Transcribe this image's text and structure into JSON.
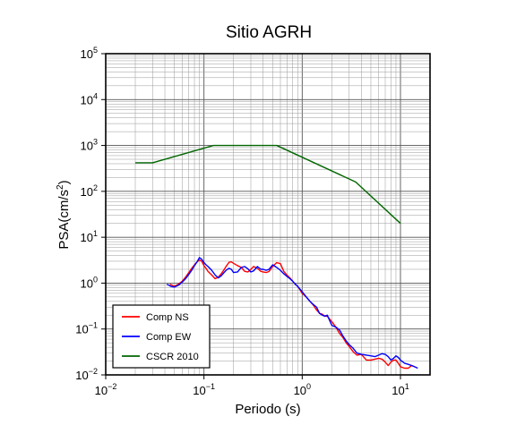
{
  "chart_data": {
    "type": "line",
    "title": "Sitio AGRH",
    "xlabel": "Periodo (s)",
    "ylabel": "PSA(cm/s2)",
    "x_scale": "log",
    "y_scale": "log",
    "xlim": [
      0.01,
      20
    ],
    "ylim": [
      0.01,
      100000
    ],
    "x_ticks": [
      {
        "base": "10",
        "exp": "−2",
        "value": 0.01
      },
      {
        "base": "10",
        "exp": "−1",
        "value": 0.1
      },
      {
        "base": "10",
        "exp": "0",
        "value": 1
      },
      {
        "base": "10",
        "exp": "1",
        "value": 10
      }
    ],
    "y_ticks": [
      {
        "base": "10",
        "exp": "−2",
        "value": 0.01
      },
      {
        "base": "10",
        "exp": "−1",
        "value": 0.1
      },
      {
        "base": "10",
        "exp": "0",
        "value": 1
      },
      {
        "base": "10",
        "exp": "1",
        "value": 10
      },
      {
        "base": "10",
        "exp": "2",
        "value": 100
      },
      {
        "base": "10",
        "exp": "3",
        "value": 1000
      },
      {
        "base": "10",
        "exp": "4",
        "value": 10000
      },
      {
        "base": "10",
        "exp": "5",
        "value": 100000
      }
    ],
    "grid": true,
    "legend_position": "bottom-left",
    "series": [
      {
        "name": "Comp NS",
        "color": "#ff0000",
        "x": [
          0.045,
          0.05,
          0.055,
          0.06,
          0.065,
          0.07,
          0.075,
          0.08,
          0.085,
          0.09,
          0.095,
          0.1,
          0.105,
          0.11,
          0.12,
          0.13,
          0.14,
          0.15,
          0.16,
          0.17,
          0.18,
          0.19,
          0.2,
          0.22,
          0.24,
          0.26,
          0.28,
          0.3,
          0.32,
          0.35,
          0.38,
          0.4,
          0.43,
          0.46,
          0.5,
          0.55,
          0.6,
          0.65,
          0.7,
          0.75,
          0.8,
          0.85,
          0.9,
          1.0,
          1.1,
          1.2,
          1.3,
          1.4,
          1.5,
          1.6,
          1.7,
          1.8,
          2.0,
          2.2,
          2.4,
          2.6,
          2.8,
          3.0,
          3.3,
          3.6,
          4.0,
          4.5,
          5.0,
          5.5,
          6.0,
          6.5,
          7.0,
          7.5,
          8.0,
          8.5,
          9.0,
          9.5,
          10.0,
          11.0,
          12.0,
          13.0,
          14.0
        ],
        "values": [
          0.95,
          0.85,
          0.95,
          1.1,
          1.35,
          1.7,
          2.1,
          2.5,
          2.9,
          3.2,
          3.0,
          2.4,
          2.1,
          1.8,
          1.5,
          1.25,
          1.35,
          1.6,
          1.95,
          2.4,
          2.85,
          2.9,
          2.7,
          2.4,
          2.2,
          1.8,
          1.75,
          2.0,
          2.3,
          2.1,
          1.8,
          1.75,
          1.7,
          1.8,
          2.3,
          2.8,
          2.65,
          1.8,
          1.5,
          1.3,
          1.1,
          0.95,
          0.85,
          0.6,
          0.5,
          0.4,
          0.33,
          0.26,
          0.22,
          0.21,
          0.19,
          0.19,
          0.145,
          0.11,
          0.08,
          0.065,
          0.05,
          0.042,
          0.032,
          0.027,
          0.028,
          0.021,
          0.021,
          0.022,
          0.023,
          0.022,
          0.019,
          0.016,
          0.019,
          0.021,
          0.021,
          0.018,
          0.015,
          0.014,
          0.014,
          0.016,
          0.015
        ]
      },
      {
        "name": "Comp EW",
        "color": "#0000ff",
        "x": [
          0.042,
          0.046,
          0.05,
          0.055,
          0.06,
          0.065,
          0.07,
          0.075,
          0.08,
          0.085,
          0.09,
          0.095,
          0.1,
          0.105,
          0.11,
          0.12,
          0.13,
          0.14,
          0.15,
          0.16,
          0.17,
          0.18,
          0.19,
          0.2,
          0.22,
          0.24,
          0.26,
          0.28,
          0.3,
          0.32,
          0.35,
          0.38,
          0.4,
          0.43,
          0.46,
          0.5,
          0.55,
          0.6,
          0.65,
          0.7,
          0.75,
          0.8,
          0.85,
          0.9,
          1.0,
          1.1,
          1.2,
          1.3,
          1.4,
          1.5,
          1.6,
          1.7,
          1.8,
          2.0,
          2.2,
          2.4,
          2.6,
          2.8,
          3.0,
          3.3,
          3.6,
          4.0,
          4.5,
          5.0,
          5.5,
          6.0,
          6.5,
          7.0,
          7.5,
          8.0,
          8.5,
          9.0,
          9.5,
          10.0,
          11.0,
          12.0,
          13.0,
          14.0,
          15.0
        ],
        "values": [
          0.95,
          0.85,
          0.82,
          0.9,
          1.05,
          1.25,
          1.55,
          1.9,
          2.4,
          2.9,
          3.6,
          3.3,
          2.8,
          2.5,
          2.3,
          1.9,
          1.5,
          1.3,
          1.45,
          1.7,
          1.95,
          2.1,
          2.0,
          1.7,
          1.75,
          2.2,
          2.3,
          2.05,
          1.75,
          1.85,
          2.3,
          2.0,
          2.0,
          1.9,
          2.0,
          2.5,
          2.2,
          1.9,
          1.6,
          1.4,
          1.25,
          1.1,
          0.95,
          0.85,
          0.65,
          0.5,
          0.4,
          0.34,
          0.3,
          0.22,
          0.2,
          0.19,
          0.2,
          0.12,
          0.11,
          0.095,
          0.07,
          0.055,
          0.046,
          0.038,
          0.03,
          0.028,
          0.027,
          0.026,
          0.025,
          0.027,
          0.029,
          0.028,
          0.025,
          0.021,
          0.023,
          0.026,
          0.024,
          0.021,
          0.018,
          0.017,
          0.016,
          0.015,
          0.014
        ]
      },
      {
        "name": "CSCR 2010",
        "color": "#006600",
        "x": [
          0.02,
          0.03,
          0.125,
          0.55,
          3.5,
          10.0
        ],
        "values": [
          420,
          420,
          1000,
          1000,
          160,
          20
        ]
      }
    ]
  }
}
